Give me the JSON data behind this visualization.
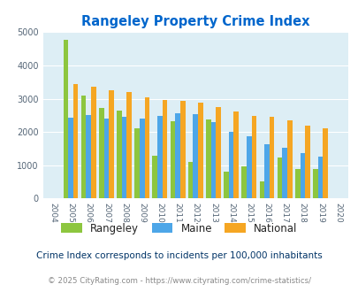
{
  "title": "Rangeley Property Crime Index",
  "years": [
    2004,
    2005,
    2006,
    2007,
    2008,
    2009,
    2010,
    2011,
    2012,
    2013,
    2014,
    2015,
    2016,
    2017,
    2018,
    2019,
    2020
  ],
  "rangeley": [
    null,
    4780,
    3100,
    2720,
    2630,
    2100,
    1280,
    2330,
    1100,
    2380,
    800,
    960,
    510,
    1230,
    880,
    890,
    null
  ],
  "maine": [
    null,
    2420,
    2510,
    2400,
    2460,
    2400,
    2490,
    2560,
    2540,
    2290,
    2010,
    1860,
    1640,
    1520,
    1360,
    1270,
    null
  ],
  "national": [
    null,
    3440,
    3350,
    3250,
    3210,
    3040,
    2950,
    2940,
    2880,
    2740,
    2620,
    2490,
    2450,
    2360,
    2190,
    2110,
    null
  ],
  "rangeley_color": "#8dc63f",
  "maine_color": "#4da6e8",
  "national_color": "#f5a623",
  "bg_color": "#ddeef5",
  "title_color": "#0066cc",
  "subtitle": "Crime Index corresponds to incidents per 100,000 inhabitants",
  "footer": "© 2025 CityRating.com - https://www.cityrating.com/crime-statistics/",
  "subtitle_color": "#003366",
  "footer_color": "#888888",
  "ylim": [
    0,
    5000
  ],
  "yticks": [
    0,
    1000,
    2000,
    3000,
    4000,
    5000
  ]
}
